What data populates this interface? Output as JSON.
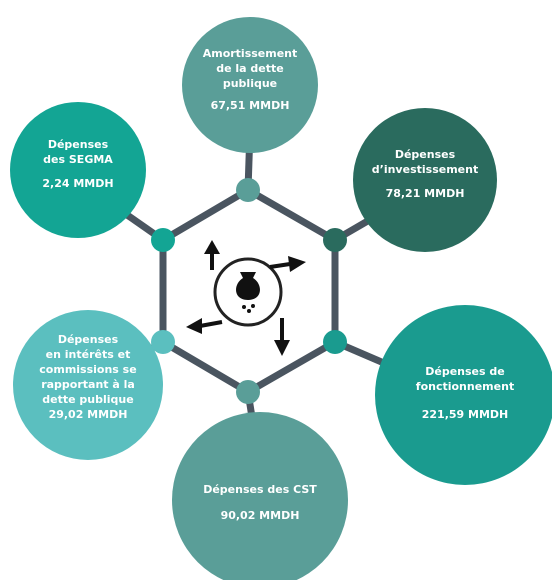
{
  "nodes": [
    {
      "label": [
        "Amortissement",
        "de la dette",
        "publique"
      ],
      "value": "67,51 MMDH"
    },
    {
      "label": [
        "Dépenses",
        "d’investissement"
      ],
      "value": "78,21 MMDH"
    },
    {
      "label": [
        "Dépenses de",
        "fonctionnement"
      ],
      "value": "221,59 MMDH"
    },
    {
      "label": [
        "Dépenses des CST"
      ],
      "value": "90,02 MMDH"
    },
    {
      "label": [
        "Dépenses",
        "en intérêts et",
        "commissions se",
        "rapportant à la",
        "dette publique"
      ],
      "value": "29,02 MMDH"
    },
    {
      "label": [
        "Dépenses",
        "des SEGMA"
      ],
      "value": "2,24 MMDH"
    }
  ]
}
